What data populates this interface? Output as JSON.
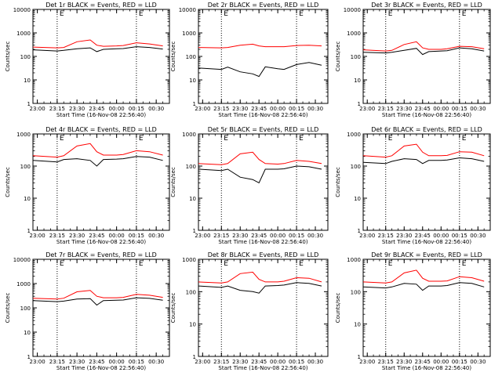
{
  "figure": {
    "background": "#ffffff",
    "colors": {
      "events": "#000000",
      "lld": "#ff0000",
      "axis": "#000000",
      "marker": "#000000"
    }
  },
  "chart_data": [
    {
      "type": "line",
      "title": "Det 1r BLACK = Events, RED = LLD",
      "xlabel": "Start Time (16-Nov-08 22:56:40)",
      "ylabel": "Counts/sec",
      "yscale": "log",
      "ylim": [
        1,
        10000
      ],
      "yticks": [
        "1",
        "10",
        "100",
        "1000",
        "10000"
      ],
      "xlim": [
        "22:56:40",
        "00:40:00"
      ],
      "xticks": [
        "23:00",
        "23:15",
        "23:30",
        "23:45",
        "00:00",
        "00:15",
        "00:30"
      ],
      "markers": [
        "23:15",
        "00:15"
      ],
      "top_labels": [
        "E",
        "E"
      ],
      "series": [
        {
          "name": "BLACK = Events",
          "x": [
            "22:56:40",
            "23:15",
            "23:20",
            "23:30",
            "23:40",
            "23:45",
            "23:50",
            "00:00",
            "00:05",
            "00:15",
            "00:25",
            "00:35"
          ],
          "y": [
            190,
            170,
            180,
            210,
            230,
            160,
            200,
            210,
            215,
            260,
            240,
            205
          ]
        },
        {
          "name": "RED = LLD",
          "x": [
            "22:56:40",
            "23:15",
            "23:20",
            "23:30",
            "23:40",
            "23:45",
            "23:50",
            "00:00",
            "00:05",
            "00:15",
            "00:25",
            "00:35"
          ],
          "y": [
            250,
            230,
            240,
            420,
            500,
            300,
            270,
            280,
            290,
            380,
            340,
            280
          ]
        }
      ]
    },
    {
      "type": "line",
      "title": "Det 2r BLACK = Events, RED = LLD",
      "xlabel": "Start Time (16-Nov-08 22:56:40)",
      "ylabel": "Counts/sec",
      "yscale": "log",
      "ylim": [
        1,
        10000
      ],
      "yticks": [
        "1",
        "10",
        "100",
        "1000",
        "10000"
      ],
      "xlim": [
        "22:56:40",
        "00:40:00"
      ],
      "xticks": [
        "23:00",
        "23:15",
        "23:30",
        "23:45",
        "00:00",
        "00:15",
        "00:30"
      ],
      "markers": [
        "23:15",
        "00:15"
      ],
      "top_labels": [
        "E",
        "E"
      ],
      "series": [
        {
          "name": "BLACK = Events",
          "x": [
            "22:56:40",
            "23:15",
            "23:20",
            "23:30",
            "23:40",
            "23:45",
            "23:50",
            "00:00",
            "00:05",
            "00:15",
            "00:25",
            "00:35"
          ],
          "y": [
            32,
            28,
            35,
            22,
            18,
            14,
            36,
            30,
            28,
            45,
            55,
            42
          ]
        },
        {
          "name": "RED = LLD",
          "x": [
            "22:56:40",
            "23:15",
            "23:20",
            "23:30",
            "23:40",
            "23:45",
            "23:50",
            "00:00",
            "00:05",
            "00:15",
            "00:25",
            "00:35"
          ],
          "y": [
            240,
            230,
            240,
            300,
            330,
            280,
            260,
            260,
            260,
            290,
            300,
            280
          ]
        }
      ]
    },
    {
      "type": "line",
      "title": "Det 3r BLACK = Events, RED = LLD",
      "xlabel": "Start Time (16-Nov-08 22:56:40)",
      "ylabel": "Counts/sec",
      "yscale": "log",
      "ylim": [
        1,
        10000
      ],
      "yticks": [
        "1",
        "10",
        "100",
        "1000",
        "10000"
      ],
      "xlim": [
        "22:56:40",
        "00:40:00"
      ],
      "xticks": [
        "23:00",
        "23:15",
        "23:30",
        "23:45",
        "00:00",
        "00:15",
        "00:30"
      ],
      "markers": [
        "23:15",
        "00:15"
      ],
      "top_labels": [
        "E",
        "E"
      ],
      "series": [
        {
          "name": "BLACK = Events",
          "x": [
            "22:56:40",
            "23:15",
            "23:20",
            "23:30",
            "23:40",
            "23:45",
            "23:50",
            "00:00",
            "00:05",
            "00:15",
            "00:25",
            "00:35"
          ],
          "y": [
            150,
            140,
            150,
            180,
            220,
            120,
            160,
            170,
            175,
            230,
            210,
            170
          ]
        },
        {
          "name": "RED = LLD",
          "x": [
            "22:56:40",
            "23:15",
            "23:20",
            "23:30",
            "23:40",
            "23:45",
            "23:50",
            "00:00",
            "00:05",
            "00:15",
            "00:25",
            "00:35"
          ],
          "y": [
            190,
            170,
            180,
            320,
            420,
            230,
            200,
            200,
            210,
            270,
            260,
            210
          ]
        }
      ]
    },
    {
      "type": "line",
      "title": "Det 4r BLACK = Events, RED = LLD",
      "xlabel": "Start Time (16-Nov-08 22:56:40)",
      "ylabel": "Counts/sec",
      "yscale": "log",
      "ylim": [
        1,
        1000
      ],
      "yticks": [
        "1",
        "10",
        "100",
        "1000"
      ],
      "xlim": [
        "22:56:40",
        "00:40:00"
      ],
      "xticks": [
        "23:00",
        "23:15",
        "23:30",
        "23:45",
        "00:00",
        "00:15",
        "00:30"
      ],
      "markers": [
        "23:15",
        "00:15"
      ],
      "top_labels": [
        "E",
        "E"
      ],
      "series": [
        {
          "name": "BLACK = Events",
          "x": [
            "22:56:40",
            "23:15",
            "23:20",
            "23:30",
            "23:40",
            "23:45",
            "23:50",
            "00:00",
            "00:05",
            "00:15",
            "00:25",
            "00:35"
          ],
          "y": [
            150,
            135,
            160,
            170,
            150,
            100,
            160,
            165,
            170,
            200,
            190,
            150
          ]
        },
        {
          "name": "RED = LLD",
          "x": [
            "22:56:40",
            "23:15",
            "23:20",
            "23:30",
            "23:40",
            "23:45",
            "23:50",
            "00:00",
            "00:05",
            "00:15",
            "00:25",
            "00:35"
          ],
          "y": [
            210,
            190,
            210,
            420,
            500,
            280,
            220,
            220,
            230,
            300,
            280,
            220
          ]
        }
      ]
    },
    {
      "type": "line",
      "title": "Det 5r BLACK = Events, RED = LLD",
      "xlabel": "Start Time (16-Nov-08 22:56:40)",
      "ylabel": "Counts/sec",
      "yscale": "log",
      "ylim": [
        1,
        1000
      ],
      "yticks": [
        "1",
        "10",
        "100",
        "1000"
      ],
      "xlim": [
        "22:56:40",
        "00:40:00"
      ],
      "xticks": [
        "23:00",
        "23:15",
        "23:30",
        "23:45",
        "00:00",
        "00:15",
        "00:30"
      ],
      "markers": [
        "23:15",
        "00:15"
      ],
      "top_labels": [
        "E",
        "E"
      ],
      "series": [
        {
          "name": "BLACK = Events",
          "x": [
            "22:56:40",
            "23:15",
            "23:20",
            "23:30",
            "23:40",
            "23:45",
            "23:50",
            "00:00",
            "00:05",
            "00:15",
            "00:25",
            "00:35"
          ],
          "y": [
            80,
            72,
            80,
            45,
            38,
            30,
            80,
            80,
            82,
            100,
            95,
            80
          ]
        },
        {
          "name": "RED = LLD",
          "x": [
            "22:56:40",
            "23:15",
            "23:20",
            "23:30",
            "23:40",
            "23:45",
            "23:50",
            "00:00",
            "00:05",
            "00:15",
            "00:25",
            "00:35"
          ],
          "y": [
            120,
            110,
            120,
            240,
            270,
            160,
            120,
            115,
            120,
            150,
            140,
            120
          ]
        }
      ]
    },
    {
      "type": "line",
      "title": "Det 6r BLACK = Events, RED = LLD",
      "xlabel": "Start Time (16-Nov-08 22:56:40)",
      "ylabel": "Counts/sec",
      "yscale": "log",
      "ylim": [
        1,
        1000
      ],
      "yticks": [
        "1",
        "10",
        "100",
        "1000"
      ],
      "xlim": [
        "22:56:40",
        "00:40:00"
      ],
      "xticks": [
        "23:00",
        "23:15",
        "23:30",
        "23:45",
        "00:00",
        "00:15",
        "00:30"
      ],
      "markers": [
        "23:15",
        "00:15"
      ],
      "top_labels": [
        "E",
        "E"
      ],
      "series": [
        {
          "name": "BLACK = Events",
          "x": [
            "22:56:40",
            "23:15",
            "23:20",
            "23:30",
            "23:40",
            "23:45",
            "23:50",
            "00:00",
            "00:05",
            "00:15",
            "00:25",
            "00:35"
          ],
          "y": [
            130,
            120,
            140,
            170,
            160,
            120,
            150,
            150,
            155,
            180,
            170,
            140
          ]
        },
        {
          "name": "RED = LLD",
          "x": [
            "22:56:40",
            "23:15",
            "23:20",
            "23:30",
            "23:40",
            "23:45",
            "23:50",
            "00:00",
            "00:05",
            "00:15",
            "00:25",
            "00:35"
          ],
          "y": [
            210,
            190,
            210,
            420,
            480,
            270,
            210,
            210,
            215,
            280,
            270,
            210
          ]
        }
      ]
    },
    {
      "type": "line",
      "title": "Det 7r BLACK = Events, RED = LLD",
      "xlabel": "Start Time (16-Nov-08 22:56:40)",
      "ylabel": "Counts/sec",
      "yscale": "log",
      "ylim": [
        1,
        10000
      ],
      "yticks": [
        "1",
        "10",
        "100",
        "1000",
        "10000"
      ],
      "xlim": [
        "22:56:40",
        "00:40:00"
      ],
      "xticks": [
        "23:00",
        "23:15",
        "23:30",
        "23:45",
        "00:00",
        "00:15",
        "00:30"
      ],
      "markers": [
        "23:15",
        "00:15"
      ],
      "top_labels": [
        "E",
        "E"
      ],
      "series": [
        {
          "name": "BLACK = Events",
          "x": [
            "22:56:40",
            "23:15",
            "23:20",
            "23:30",
            "23:40",
            "23:45",
            "23:50",
            "00:00",
            "00:05",
            "00:15",
            "00:25",
            "00:35"
          ],
          "y": [
            200,
            180,
            190,
            230,
            240,
            130,
            200,
            205,
            210,
            260,
            245,
            205
          ]
        },
        {
          "name": "RED = LLD",
          "x": [
            "22:56:40",
            "23:15",
            "23:20",
            "23:30",
            "23:40",
            "23:45",
            "23:50",
            "00:00",
            "00:05",
            "00:15",
            "00:25",
            "00:35"
          ],
          "y": [
            250,
            230,
            250,
            460,
            520,
            300,
            260,
            260,
            270,
            360,
            330,
            270
          ]
        }
      ]
    },
    {
      "type": "line",
      "title": "Det 8r BLACK = Events, RED = LLD",
      "xlabel": "Start Time (16-Nov-08 22:56:40)",
      "ylabel": "Counts/sec",
      "yscale": "log",
      "ylim": [
        1,
        1000
      ],
      "yticks": [
        "1",
        "10",
        "100",
        "1000"
      ],
      "xlim": [
        "22:56:40",
        "00:40:00"
      ],
      "xticks": [
        "23:00",
        "23:15",
        "23:30",
        "23:45",
        "00:00",
        "00:15",
        "00:30"
      ],
      "markers": [
        "23:15",
        "00:15"
      ],
      "top_labels": [
        "E",
        "E"
      ],
      "series": [
        {
          "name": "BLACK = Events",
          "x": [
            "22:56:40",
            "23:15",
            "23:20",
            "23:30",
            "23:40",
            "23:45",
            "23:50",
            "00:00",
            "00:05",
            "00:15",
            "00:25",
            "00:35"
          ],
          "y": [
            150,
            135,
            150,
            110,
            100,
            90,
            150,
            155,
            160,
            190,
            180,
            150
          ]
        },
        {
          "name": "RED = LLD",
          "x": [
            "22:56:40",
            "23:15",
            "23:20",
            "23:30",
            "23:40",
            "23:45",
            "23:50",
            "00:00",
            "00:05",
            "00:15",
            "00:25",
            "00:35"
          ],
          "y": [
            200,
            185,
            200,
            360,
            400,
            240,
            200,
            200,
            210,
            270,
            260,
            200
          ]
        }
      ]
    },
    {
      "type": "line",
      "title": "Det 9r BLACK = Events, RED = LLD",
      "xlabel": "Start Time (16-Nov-08 22:56:40)",
      "ylabel": "Counts/sec",
      "yscale": "log",
      "ylim": [
        1,
        1000
      ],
      "yticks": [
        "1",
        "10",
        "100",
        "1000"
      ],
      "xlim": [
        "22:56:40",
        "00:40:00"
      ],
      "xticks": [
        "23:00",
        "23:15",
        "23:30",
        "23:45",
        "00:00",
        "00:15",
        "00:30"
      ],
      "markers": [
        "23:15",
        "00:15"
      ],
      "top_labels": [
        "E",
        "E"
      ],
      "series": [
        {
          "name": "BLACK = Events",
          "x": [
            "22:56:40",
            "23:15",
            "23:20",
            "23:30",
            "23:40",
            "23:45",
            "23:50",
            "00:00",
            "00:05",
            "00:15",
            "00:25",
            "00:35"
          ],
          "y": [
            140,
            130,
            140,
            180,
            170,
            110,
            150,
            150,
            155,
            190,
            180,
            140
          ]
        },
        {
          "name": "RED = LLD",
          "x": [
            "22:56:40",
            "23:15",
            "23:20",
            "23:30",
            "23:40",
            "23:45",
            "23:50",
            "00:00",
            "00:05",
            "00:15",
            "00:25",
            "00:35"
          ],
          "y": [
            200,
            185,
            200,
            380,
            460,
            260,
            210,
            210,
            215,
            290,
            270,
            210
          ]
        }
      ]
    }
  ]
}
